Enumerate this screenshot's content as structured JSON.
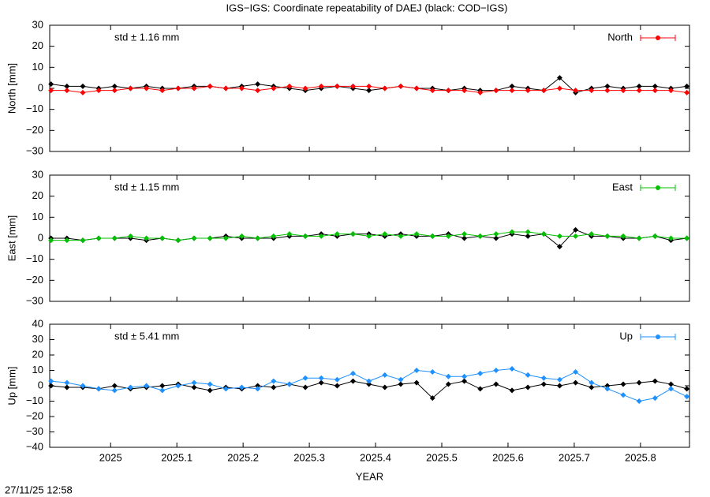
{
  "title": "IGS−IGS: Coordinate repeatability of DAEJ (black: COD−IGS)",
  "timestamp": "27/11/25 12:58",
  "chart_data": [
    {
      "type": "line",
      "ylabel": "North [mm]",
      "annotation": "std ± 1.16 mm",
      "legend": "upper right",
      "xlim": [
        2024.908,
        2025.874
      ],
      "ylim": [
        -30,
        30
      ],
      "yticks": [
        {
          "value": -30,
          "label": "−30"
        },
        {
          "value": -20,
          "label": "−20"
        },
        {
          "value": -10,
          "label": "−10"
        },
        0,
        10,
        20,
        30
      ],
      "x": [
        2024.91,
        2024.934,
        2024.958,
        2024.982,
        2025.006,
        2025.03,
        2025.054,
        2025.078,
        2025.102,
        2025.126,
        2025.15,
        2025.174,
        2025.198,
        2025.222,
        2025.246,
        2025.27,
        2025.294,
        2025.318,
        2025.342,
        2025.366,
        2025.39,
        2025.414,
        2025.438,
        2025.462,
        2025.486,
        2025.51,
        2025.534,
        2025.558,
        2025.582,
        2025.606,
        2025.63,
        2025.654,
        2025.678,
        2025.702,
        2025.726,
        2025.75,
        2025.774,
        2025.798,
        2025.822,
        2025.846,
        2025.87
      ],
      "series": [
        {
          "color": "#000000",
          "values": [
            2,
            1,
            1,
            0,
            1,
            0,
            1,
            0,
            0,
            1,
            1,
            0,
            1,
            2,
            1,
            0,
            -1,
            0,
            1,
            0,
            -1,
            0,
            1,
            0,
            0,
            -1,
            0,
            -1,
            -1,
            1,
            0,
            -1,
            5,
            -2,
            0,
            1,
            0,
            1,
            1,
            0,
            1
          ]
        },
        {
          "name": "North",
          "color": "#ff0000",
          "values": [
            -1,
            -1,
            -2,
            -1,
            -1,
            0,
            0,
            -1,
            0,
            0,
            1,
            0,
            0,
            -1,
            0,
            1,
            0,
            1,
            1,
            1,
            1,
            0,
            1,
            0,
            -1,
            -1,
            -1,
            -2,
            -1,
            -1,
            -1,
            -1,
            0,
            -1,
            -1,
            -1,
            -1,
            -1,
            -1,
            -1,
            -2
          ]
        }
      ]
    },
    {
      "type": "line",
      "ylabel": "East [mm]",
      "annotation": "std ± 1.15 mm",
      "legend": "upper right",
      "xlim": [
        2024.908,
        2025.874
      ],
      "ylim": [
        -30,
        30
      ],
      "yticks": [
        {
          "value": -30,
          "label": "−30"
        },
        {
          "value": -20,
          "label": "−20"
        },
        {
          "value": -10,
          "label": "−10"
        },
        0,
        10,
        20,
        30
      ],
      "x": [
        2024.91,
        2024.934,
        2024.958,
        2024.982,
        2025.006,
        2025.03,
        2025.054,
        2025.078,
        2025.102,
        2025.126,
        2025.15,
        2025.174,
        2025.198,
        2025.222,
        2025.246,
        2025.27,
        2025.294,
        2025.318,
        2025.342,
        2025.366,
        2025.39,
        2025.414,
        2025.438,
        2025.462,
        2025.486,
        2025.51,
        2025.534,
        2025.558,
        2025.582,
        2025.606,
        2025.63,
        2025.654,
        2025.678,
        2025.702,
        2025.726,
        2025.75,
        2025.774,
        2025.798,
        2025.822,
        2025.846,
        2025.87
      ],
      "series": [
        {
          "color": "#000000",
          "values": [
            0,
            0,
            -1,
            0,
            0,
            0,
            -1,
            0,
            -1,
            0,
            0,
            1,
            0,
            0,
            0,
            1,
            1,
            2,
            1,
            2,
            2,
            1,
            2,
            1,
            1,
            2,
            0,
            1,
            0,
            2,
            1,
            2,
            -4,
            4,
            1,
            1,
            0,
            0,
            1,
            -1,
            0
          ]
        },
        {
          "name": "East",
          "color": "#00c000",
          "values": [
            -1,
            -1,
            -1,
            0,
            0,
            1,
            0,
            0,
            -1,
            0,
            0,
            0,
            1,
            0,
            1,
            2,
            1,
            1,
            2,
            2,
            1,
            2,
            1,
            2,
            1,
            1,
            2,
            1,
            2,
            3,
            3,
            2,
            1,
            1,
            2,
            1,
            1,
            0,
            1,
            0,
            0
          ]
        }
      ]
    },
    {
      "type": "line",
      "ylabel": "Up [mm]",
      "annotation": "std ± 5.41 mm",
      "legend": "upper right",
      "xlabel": "YEAR",
      "xlim": [
        2024.908,
        2025.874
      ],
      "ylim": [
        -40,
        40
      ],
      "xticks": [
        2025,
        2025.1,
        2025.2,
        2025.3,
        2025.4,
        2025.5,
        2025.6,
        2025.7,
        2025.8
      ],
      "yticks": [
        {
          "value": -40,
          "label": "−40"
        },
        {
          "value": -30,
          "label": "−30"
        },
        {
          "value": -20,
          "label": "−20"
        },
        {
          "value": -10,
          "label": "−10"
        },
        0,
        10,
        20,
        30,
        40
      ],
      "x": [
        2024.91,
        2024.934,
        2024.958,
        2024.982,
        2025.006,
        2025.03,
        2025.054,
        2025.078,
        2025.102,
        2025.126,
        2025.15,
        2025.174,
        2025.198,
        2025.222,
        2025.246,
        2025.27,
        2025.294,
        2025.318,
        2025.342,
        2025.366,
        2025.39,
        2025.414,
        2025.438,
        2025.462,
        2025.486,
        2025.51,
        2025.534,
        2025.558,
        2025.582,
        2025.606,
        2025.63,
        2025.654,
        2025.678,
        2025.702,
        2025.726,
        2025.75,
        2025.774,
        2025.798,
        2025.822,
        2025.846,
        2025.87
      ],
      "series": [
        {
          "color": "#000000",
          "values": [
            0,
            -1,
            -1,
            -2,
            0,
            -2,
            -1,
            0,
            1,
            -1,
            -3,
            -1,
            -2,
            0,
            -1,
            1,
            -1,
            2,
            0,
            3,
            1,
            -1,
            1,
            2,
            -8,
            1,
            3,
            -2,
            1,
            -3,
            -1,
            1,
            0,
            2,
            -1,
            0,
            1,
            2,
            3,
            1,
            -2
          ]
        },
        {
          "name": "Up",
          "color": "#1e90ff",
          "values": [
            3,
            2,
            0,
            -2,
            -3,
            -1,
            0,
            -3,
            0,
            2,
            1,
            -2,
            -1,
            -2,
            3,
            1,
            5,
            5,
            4,
            8,
            3,
            7,
            4,
            10,
            9,
            6,
            6,
            8,
            10,
            11,
            7,
            5,
            4,
            9,
            2,
            -2,
            -6,
            -10,
            -8,
            -2,
            -7
          ]
        }
      ]
    }
  ]
}
